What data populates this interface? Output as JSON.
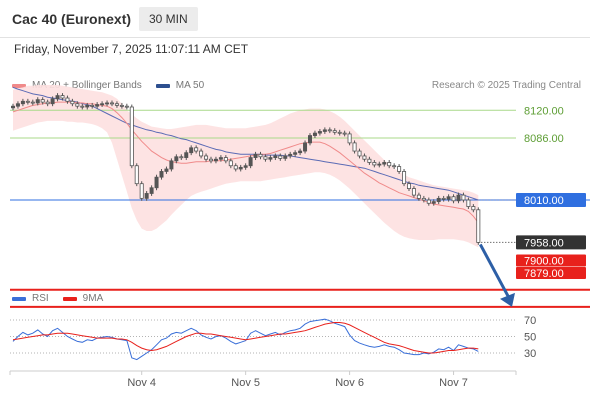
{
  "header": {
    "symbol": "Cac 40 (Euronext)",
    "timeframe": "30 MIN",
    "datetime": "Friday, November 7, 2025 11:07:11 AM CET"
  },
  "legend": {
    "ma20_label": "MA 20 + Bollinger Bands",
    "ma50_label": "MA 50",
    "credit": "Research © 2025 Trading Central"
  },
  "rsi_legend": {
    "rsi_label": "RSI",
    "ma_label": "9MA"
  },
  "colors": {
    "ma20": "#f08a8a",
    "bollinger_fill": "#fde0e0",
    "ma50": "#5b6bb5",
    "green_level": "#a9d98a",
    "blue_level": "#2f6fe0",
    "red_level": "#e8211c",
    "current_price": "#333333",
    "rsi": "#3a6fd8",
    "rsi_ma": "#e8211c",
    "candle": "#555555",
    "arrow": "#2d5fa6"
  },
  "chart_data": {
    "type": "candlestick",
    "x_tick_labels": [
      "Nov 4",
      "Nov 5",
      "Nov 6",
      "Nov 7"
    ],
    "x_tick_candle_index": [
      26,
      47,
      68,
      89
    ],
    "price_levels": [
      {
        "value": 8120.0,
        "label": "8120.00",
        "kind": "resistance"
      },
      {
        "value": 8086.0,
        "label": "8086.00",
        "kind": "resistance"
      },
      {
        "value": 8010.0,
        "label": "8010.00",
        "kind": "pivot"
      },
      {
        "value": 7958.0,
        "label": "7958.00",
        "kind": "current"
      },
      {
        "value": 7900.0,
        "label": "7900.00",
        "kind": "support"
      },
      {
        "value": 7879.0,
        "label": "7879.00",
        "kind": "support"
      }
    ],
    "forecast": {
      "from_candle": 94,
      "from": 7958,
      "to": 7879
    },
    "closes": [
      8125,
      8128,
      8131,
      8130,
      8129,
      8133,
      8130,
      8128,
      8134,
      8138,
      8135,
      8131,
      8128,
      8125,
      8124,
      8126,
      8125,
      8127,
      8128,
      8129,
      8128,
      8126,
      8125,
      8124,
      8052,
      8030,
      8012,
      8018,
      8025,
      8038,
      8045,
      8048,
      8058,
      8063,
      8062,
      8068,
      8074,
      8070,
      8064,
      8060,
      8058,
      8060,
      8062,
      8058,
      8052,
      8048,
      8050,
      8052,
      8062,
      8066,
      8063,
      8060,
      8062,
      8064,
      8061,
      8064,
      8066,
      8068,
      8070,
      8080,
      8089,
      8092,
      8094,
      8096,
      8095,
      8093,
      8092,
      8091,
      8080,
      8070,
      8064,
      8060,
      8056,
      8053,
      8054,
      8056,
      8052,
      8051,
      8045,
      8030,
      8024,
      8016,
      8012,
      8010,
      8006,
      8008,
      8012,
      8011,
      8014,
      8009,
      8016,
      8010,
      8002,
      7998,
      7958
    ],
    "ma20": [
      8118,
      8120,
      8122,
      8124,
      8126,
      8127,
      8128,
      8129,
      8129,
      8130,
      8130,
      8130,
      8130,
      8129,
      8129,
      8128,
      8128,
      8127,
      8126,
      8125,
      8122,
      8117,
      8111,
      8104,
      8096,
      8089,
      8082,
      8076,
      8070,
      8066,
      8062,
      8059,
      8057,
      8056,
      8055,
      8055,
      8056,
      8057,
      8057,
      8057,
      8058,
      8058,
      8058,
      8059,
      8060,
      8061,
      8062,
      8063,
      8064,
      8065,
      8066,
      8066,
      8067,
      8069,
      8071,
      8073,
      8075,
      8077,
      8079,
      8080,
      8081,
      8081,
      8081,
      8079,
      8076,
      8072,
      8068,
      8063,
      8058,
      8053,
      8048,
      8043,
      8039,
      8035,
      8031,
      8028,
      8025,
      8022,
      8019,
      8017,
      8015,
      8013,
      8011,
      8009,
      8007,
      8005,
      8004,
      8003,
      8002,
      8001,
      8000,
      7999,
      7996,
      7990,
      7982
    ],
    "ma50": [
      8148,
      8146,
      8144,
      8142,
      8140,
      8139,
      8138,
      8136,
      8135,
      8134,
      8133,
      8132,
      8131,
      8130,
      8128,
      8127,
      8125,
      8122,
      8119,
      8116,
      8113,
      8110,
      8107,
      8104,
      8102,
      8100,
      8098,
      8096,
      8095,
      8093,
      8092,
      8090,
      8089,
      8087,
      8085,
      8084,
      8082,
      8080,
      8078,
      8076,
      8074,
      8072,
      8071,
      8069,
      8068,
      8067,
      8066,
      8066,
      8066,
      8066,
      8066,
      8065,
      8065,
      8065,
      8065,
      8064,
      8064,
      8063,
      8062,
      8061,
      8060,
      8059,
      8058,
      8057,
      8056,
      8055,
      8054,
      8053,
      8052,
      8051,
      8050,
      8049,
      8047,
      8045,
      8043,
      8041,
      8039,
      8037,
      8035,
      8033,
      8031,
      8030,
      8028,
      8027,
      8026,
      8025,
      8024,
      8023,
      8022,
      8020,
      8018,
      8016,
      8014,
      8012,
      8010
    ],
    "bb_upper": [
      8145,
      8147,
      8148,
      8150,
      8150,
      8151,
      8151,
      8151,
      8151,
      8151,
      8150,
      8149,
      8148,
      8147,
      8146,
      8145,
      8144,
      8143,
      8142,
      8140,
      8138,
      8134,
      8128,
      8120,
      8115,
      8110,
      8106,
      8103,
      8100,
      8099,
      8098,
      8097,
      8097,
      8098,
      8099,
      8100,
      8101,
      8102,
      8102,
      8102,
      8101,
      8100,
      8099,
      8098,
      8098,
      8098,
      8098,
      8098,
      8099,
      8100,
      8101,
      8102,
      8104,
      8107,
      8110,
      8113,
      8116,
      8118,
      8120,
      8121,
      8122,
      8122,
      8122,
      8121,
      8119,
      8116,
      8112,
      8107,
      8101,
      8095,
      8089,
      8083,
      8077,
      8071,
      8065,
      8059,
      8054,
      8049,
      8045,
      8041,
      8038,
      8036,
      8034,
      8032,
      8030,
      8028,
      8027,
      8026,
      8025,
      8024,
      8023,
      8022,
      8021,
      8019,
      8016
    ],
    "bb_lower": [
      8095,
      8097,
      8099,
      8101,
      8103,
      8105,
      8106,
      8107,
      8107,
      8107,
      8107,
      8106,
      8106,
      8105,
      8105,
      8104,
      8103,
      8101,
      8098,
      8093,
      8080,
      8060,
      8040,
      8020,
      8000,
      7985,
      7975,
      7972,
      7972,
      7975,
      7980,
      7985,
      7992,
      7998,
      8004,
      8010,
      8015,
      8018,
      8020,
      8022,
      8024,
      8026,
      8028,
      8030,
      8031,
      8032,
      8033,
      8033,
      8033,
      8033,
      8033,
      8034,
      8035,
      8036,
      8037,
      8038,
      8039,
      8040,
      8041,
      8042,
      8043,
      8044,
      8044,
      8043,
      8041,
      8038,
      8034,
      8029,
      8024,
      8018,
      8012,
      8006,
      8000,
      7994,
      7988,
      7982,
      7977,
      7972,
      7968,
      7965,
      7963,
      7962,
      7961,
      7961,
      7961,
      7961,
      7962,
      7962,
      7962,
      7962,
      7961,
      7960,
      7958,
      7955,
      7952
    ],
    "rsi": {
      "levels": [
        70,
        50,
        30
      ],
      "rsi": [
        44,
        50,
        55,
        52,
        54,
        58,
        53,
        50,
        57,
        60,
        55,
        50,
        47,
        44,
        43,
        46,
        45,
        48,
        49,
        50,
        49,
        47,
        46,
        45,
        24,
        22,
        26,
        30,
        34,
        40,
        46,
        48,
        53,
        55,
        54,
        57,
        60,
        57,
        52,
        49,
        47,
        50,
        51,
        48,
        44,
        41,
        43,
        45,
        54,
        57,
        54,
        51,
        53,
        55,
        52,
        55,
        57,
        58,
        60,
        65,
        68,
        69,
        70,
        71,
        69,
        66,
        64,
        62,
        52,
        45,
        42,
        40,
        38,
        37,
        38,
        40,
        38,
        37,
        34,
        30,
        29,
        28,
        28,
        30,
        29,
        31,
        35,
        34,
        37,
        33,
        40,
        38,
        36,
        35,
        32
      ],
      "ma9": [
        46,
        47,
        48,
        49,
        50,
        51,
        52,
        52,
        53,
        54,
        54,
        54,
        53,
        52,
        51,
        50,
        49,
        48,
        48,
        48,
        48,
        47,
        47,
        46,
        43,
        39,
        36,
        34,
        33,
        34,
        36,
        38,
        41,
        44,
        47,
        50,
        52,
        54,
        54,
        53,
        53,
        52,
        51,
        50,
        49,
        48,
        47,
        46,
        47,
        48,
        49,
        50,
        51,
        52,
        53,
        53,
        54,
        55,
        56,
        57,
        59,
        61,
        63,
        65,
        66,
        67,
        67,
        66,
        64,
        61,
        58,
        55,
        52,
        49,
        46,
        43,
        41,
        40,
        39,
        37,
        35,
        33,
        32,
        31,
        30,
        30,
        31,
        32,
        33,
        33,
        34,
        35,
        36,
        36,
        35
      ]
    }
  }
}
